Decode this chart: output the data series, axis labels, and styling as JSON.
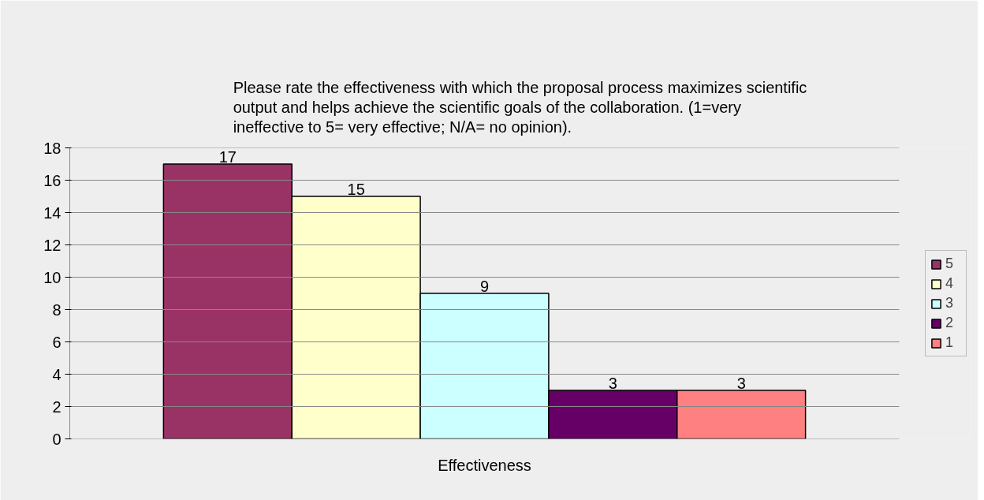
{
  "chart_data": {
    "type": "bar",
    "title": "Please rate the effectiveness with which the proposal process maximizes scientific output and helps achieve the scientific goals of the collaboration. (1=very ineffective to 5= very effective; N/A= no opinion).",
    "categories": [
      "Effectiveness"
    ],
    "series": [
      {
        "name": "5",
        "color": "#993366",
        "values": [
          17
        ]
      },
      {
        "name": "4",
        "color": "#ffffcc",
        "values": [
          15
        ]
      },
      {
        "name": "3",
        "color": "#ccffff",
        "values": [
          9
        ]
      },
      {
        "name": "2",
        "color": "#660066",
        "values": [
          3
        ]
      },
      {
        "name": "1",
        "color": "#ff8080",
        "values": [
          3
        ]
      }
    ],
    "ylim": [
      0,
      18
    ],
    "yticks": [
      0,
      2,
      4,
      6,
      8,
      10,
      12,
      14,
      16,
      18
    ],
    "grid": "y",
    "legend": "right",
    "data_labels": true
  }
}
